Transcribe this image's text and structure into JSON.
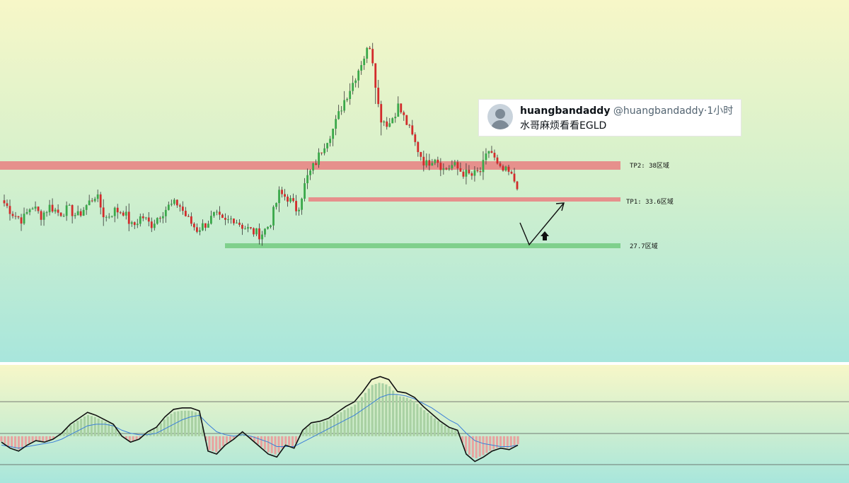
{
  "colors": {
    "bg_top": "#f7f7c8",
    "bg_bottom": "#a8e6dc",
    "up_candle": "#3aa84a",
    "down_candle": "#d22b2b",
    "tp2_zone": "#e6908c",
    "tp1_zone": "#e6908c",
    "support_zone": "#7fd08c",
    "indicator_line": "#111111",
    "signal_line": "#3b7fd9",
    "hist_pos": "#a9d1a3",
    "hist_neg": "#e8a3a0"
  },
  "tweet": {
    "name": "huangbandaddy",
    "handle": "@huangbandaddy",
    "separator": "·",
    "time": "1小时",
    "text": "水哥麻烦看看EGLD",
    "icon": "avatar-placeholder"
  },
  "chart_data": [
    {
      "type": "candlestick",
      "title": "",
      "annotations": [
        {
          "label": "TP2: 38区域",
          "level": 38.0,
          "kind": "resistance-zone"
        },
        {
          "label": "TP1: 33.6区域",
          "level": 33.6,
          "kind": "target-zone"
        },
        {
          "label": "27.7区域",
          "level": 27.7,
          "kind": "support-zone"
        }
      ],
      "projection": {
        "shape": "dip-then-rise",
        "from": 32.8,
        "low": 27.7,
        "to": 33.4,
        "arrow": "up-arrow-icon"
      },
      "close_path": [
        30.3,
        28.8,
        28.0,
        30.0,
        28.6,
        29.9,
        28.9,
        29.5,
        28.5,
        30.0,
        31.5,
        28.2,
        29.3,
        29.2,
        27.0,
        28.6,
        27.3,
        28.8,
        29.9,
        30.3,
        28.2,
        26.7,
        27.5,
        28.7,
        27.6,
        28.3,
        27.2,
        26.5,
        26.0,
        27.5,
        31.6,
        31.0,
        29.3,
        33.6,
        35.8,
        38.5,
        40.6,
        44.0,
        46.5,
        49.5,
        52.0,
        42.0,
        41.0,
        43.5,
        41.0,
        38.0,
        35.5,
        36.7,
        34.8,
        35.5,
        34.5,
        34.0,
        34.6,
        37.8,
        34.8,
        34.5,
        32.8
      ],
      "ylim": [
        18.5,
        56
      ]
    },
    {
      "type": "indicator",
      "title": "",
      "series_line": [
        -4,
        -8,
        -10,
        -6,
        -3,
        -4,
        -2,
        2,
        8,
        12,
        16,
        14,
        11,
        8,
        0,
        -4,
        -2,
        3,
        6,
        13,
        18,
        19,
        19,
        17,
        -10,
        -12,
        -6,
        -2,
        3,
        -2,
        -7,
        -12,
        -14,
        -6,
        -8,
        4,
        9,
        10,
        12,
        16,
        20,
        23,
        30,
        38,
        40,
        38,
        30,
        29,
        26,
        20,
        15,
        10,
        6,
        4,
        -12,
        -17,
        -14,
        -10,
        -8,
        -9,
        -6
      ],
      "signal_line": [
        -6,
        -7,
        -8,
        -7,
        -6,
        -5,
        -4,
        -2,
        1,
        4,
        7,
        8,
        8,
        7,
        4,
        2,
        1,
        1,
        2,
        5,
        8,
        11,
        13,
        14,
        8,
        3,
        1,
        0,
        1,
        0,
        -2,
        -4,
        -7,
        -7,
        -7,
        -4,
        -1,
        2,
        5,
        8,
        11,
        14,
        18,
        22,
        26,
        28,
        28,
        27,
        25,
        22,
        19,
        15,
        11,
        8,
        2,
        -3,
        -5,
        -6,
        -7,
        -7,
        -6
      ],
      "ylim": [
        -30,
        45
      ],
      "reference_levels": [
        25,
        0,
        -25
      ]
    }
  ]
}
